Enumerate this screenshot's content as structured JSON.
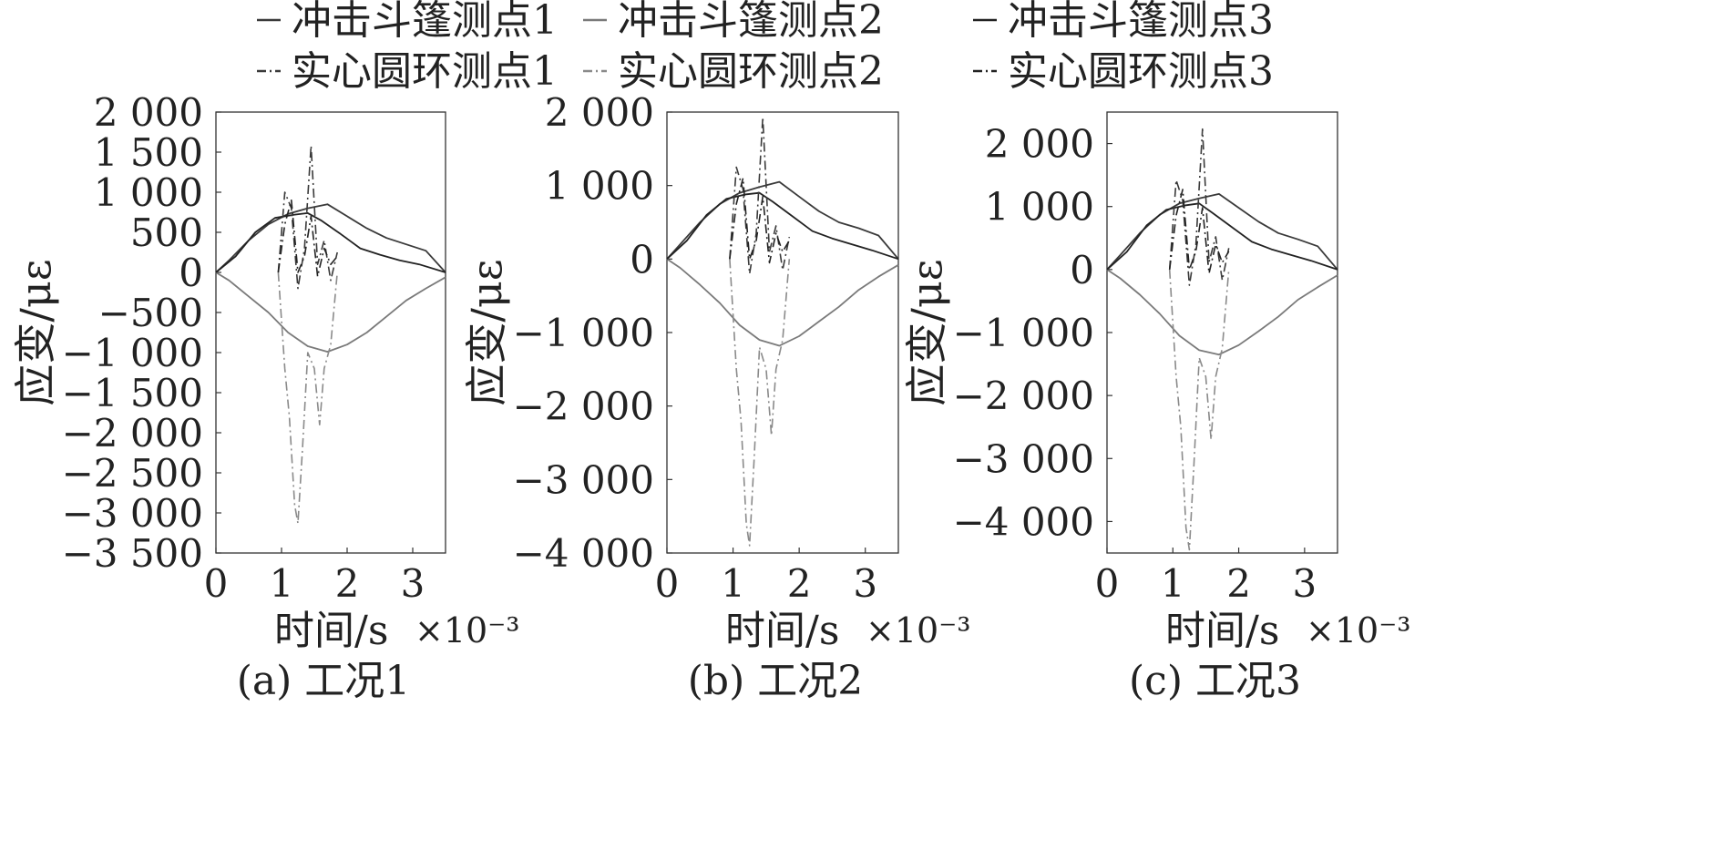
{
  "legend": {
    "entries": [
      {
        "label": "冲击斗篷测点1",
        "style": "solid",
        "color": "#3a3a3a"
      },
      {
        "label": "冲击斗篷测点2",
        "style": "solid",
        "color": "#7a7a7a"
      },
      {
        "label": "冲击斗篷测点3",
        "style": "solid",
        "color": "#222222"
      },
      {
        "label": "实心圆环测点1",
        "style": "dashdot",
        "color": "#3a3a3a"
      },
      {
        "label": "实心圆环测点2",
        "style": "dashdot",
        "color": "#8a8a8a"
      },
      {
        "label": "实心圆环测点3",
        "style": "dashdot",
        "color": "#222222"
      }
    ]
  },
  "chart_data": [
    {
      "type": "line",
      "caption": "(a) 工况1",
      "xlabel": "时间/s",
      "xexp": "×10⁻³",
      "ylabel": "应变/με",
      "xlim": [
        0,
        3.5
      ],
      "ylim": [
        -3500,
        2000
      ],
      "xticks": [
        0,
        1,
        2,
        3
      ],
      "xtick_labels": [
        "0",
        "1",
        "2",
        "3"
      ],
      "yticks": [
        2000,
        1500,
        1000,
        500,
        0,
        -500,
        -1000,
        -1500,
        -2000,
        -2500,
        -3000,
        -3500
      ],
      "ytick_labels": [
        "2 000",
        "1 500",
        "1 000",
        "500",
        "0",
        "−500",
        "−1 000",
        "−1 500",
        "−2 000",
        "−2 500",
        "−3 000",
        "−3 500"
      ],
      "series": [
        {
          "name": "冲击斗篷测点1",
          "style": "solid",
          "color": "#3a3a3a",
          "x": [
            0,
            0.2,
            0.5,
            0.8,
            1.1,
            1.4,
            1.7,
            2.0,
            2.3,
            2.6,
            2.9,
            3.2,
            3.5
          ],
          "y": [
            0,
            150,
            400,
            600,
            730,
            800,
            850,
            700,
            550,
            430,
            350,
            270,
            0
          ]
        },
        {
          "name": "冲击斗篷测点2",
          "style": "solid",
          "color": "#7a7a7a",
          "x": [
            0,
            0.2,
            0.5,
            0.8,
            1.1,
            1.4,
            1.7,
            2.0,
            2.3,
            2.6,
            2.9,
            3.2,
            3.5
          ],
          "y": [
            0,
            -100,
            -300,
            -500,
            -750,
            -920,
            -990,
            -900,
            -750,
            -550,
            -350,
            -200,
            -60
          ]
        },
        {
          "name": "冲击斗篷测点3",
          "style": "solid",
          "color": "#222222",
          "x": [
            0,
            0.3,
            0.6,
            0.9,
            1.2,
            1.4,
            1.6,
            1.9,
            2.2,
            2.5,
            2.8,
            3.1,
            3.5
          ],
          "y": [
            0,
            200,
            500,
            680,
            720,
            740,
            650,
            480,
            300,
            220,
            150,
            100,
            0
          ]
        },
        {
          "name": "实心圆环测点1",
          "style": "dashdot",
          "color": "#3a3a3a",
          "x": [
            0.95,
            1.05,
            1.15,
            1.25,
            1.35,
            1.45,
            1.55,
            1.65,
            1.75,
            1.85
          ],
          "y": [
            0,
            1000,
            800,
            -200,
            300,
            1580,
            100,
            400,
            -100,
            250
          ]
        },
        {
          "name": "实心圆环测点2",
          "style": "dashdot",
          "color": "#8a8a8a",
          "x": [
            0.95,
            1.05,
            1.12,
            1.2,
            1.25,
            1.32,
            1.4,
            1.5,
            1.58,
            1.65,
            1.75,
            1.85
          ],
          "y": [
            0,
            -1200,
            -1800,
            -2900,
            -3130,
            -2200,
            -1000,
            -1200,
            -1900,
            -1200,
            -900,
            0
          ]
        },
        {
          "name": "实心圆环测点3",
          "style": "dashdot",
          "color": "#222222",
          "x": [
            0.95,
            1.05,
            1.15,
            1.25,
            1.35,
            1.45,
            1.55,
            1.65,
            1.75,
            1.85
          ],
          "y": [
            0,
            600,
            900,
            0,
            200,
            700,
            -50,
            300,
            100,
            200
          ]
        }
      ]
    },
    {
      "type": "line",
      "caption": "(b) 工况2",
      "xlabel": "时间/s",
      "xexp": "×10⁻³",
      "ylabel": "应变/με",
      "xlim": [
        0,
        3.5
      ],
      "ylim": [
        -4000,
        2000
      ],
      "xticks": [
        0,
        1,
        2,
        3
      ],
      "xtick_labels": [
        "0",
        "1",
        "2",
        "3"
      ],
      "yticks": [
        2000,
        1000,
        0,
        -1000,
        -2000,
        -3000,
        -4000
      ],
      "ytick_labels": [
        "2 000",
        "1 000",
        "0",
        "−1 000",
        "−2 000",
        "−3 000",
        "−4 000"
      ],
      "series": [
        {
          "name": "冲击斗篷测点1",
          "style": "solid",
          "color": "#3a3a3a",
          "x": [
            0,
            0.2,
            0.5,
            0.8,
            1.1,
            1.4,
            1.7,
            2.0,
            2.3,
            2.6,
            2.9,
            3.2,
            3.5
          ],
          "y": [
            0,
            200,
            500,
            750,
            900,
            980,
            1050,
            850,
            650,
            500,
            420,
            320,
            0
          ]
        },
        {
          "name": "冲击斗篷测点2",
          "style": "solid",
          "color": "#7a7a7a",
          "x": [
            0,
            0.2,
            0.5,
            0.8,
            1.1,
            1.4,
            1.7,
            2.0,
            2.3,
            2.6,
            2.9,
            3.2,
            3.5
          ],
          "y": [
            0,
            -120,
            -350,
            -600,
            -900,
            -1100,
            -1180,
            -1050,
            -850,
            -650,
            -420,
            -240,
            -80
          ]
        },
        {
          "name": "冲击斗篷测点3",
          "style": "solid",
          "color": "#222222",
          "x": [
            0,
            0.3,
            0.6,
            0.9,
            1.2,
            1.4,
            1.6,
            1.9,
            2.2,
            2.5,
            2.8,
            3.1,
            3.5
          ],
          "y": [
            0,
            250,
            600,
            820,
            880,
            900,
            780,
            580,
            380,
            280,
            200,
            120,
            0
          ]
        },
        {
          "name": "实心圆环测点1",
          "style": "dashdot",
          "color": "#3a3a3a",
          "x": [
            0.95,
            1.05,
            1.15,
            1.25,
            1.35,
            1.45,
            1.55,
            1.65,
            1.75,
            1.85
          ],
          "y": [
            0,
            1250,
            950,
            -200,
            350,
            1930,
            100,
            450,
            -150,
            300
          ]
        },
        {
          "name": "实心圆环测点2",
          "style": "dashdot",
          "color": "#8a8a8a",
          "x": [
            0.95,
            1.05,
            1.12,
            1.2,
            1.25,
            1.32,
            1.4,
            1.5,
            1.58,
            1.65,
            1.75,
            1.85
          ],
          "y": [
            0,
            -1500,
            -2200,
            -3600,
            -3900,
            -2700,
            -1200,
            -1500,
            -2400,
            -1500,
            -1100,
            0
          ]
        },
        {
          "name": "实心圆环测点3",
          "style": "dashdot",
          "color": "#222222",
          "x": [
            0.95,
            1.05,
            1.15,
            1.25,
            1.35,
            1.45,
            1.55,
            1.65,
            1.75,
            1.85
          ],
          "y": [
            0,
            750,
            1100,
            0,
            250,
            850,
            -50,
            350,
            100,
            250
          ]
        }
      ]
    },
    {
      "type": "line",
      "caption": "(c) 工况3",
      "xlabel": "时间/s",
      "xexp": "×10⁻³",
      "ylabel": "应变/με",
      "xlim": [
        0,
        3.5
      ],
      "ylim": [
        -4500,
        2500
      ],
      "xticks": [
        0,
        1,
        2,
        3
      ],
      "xtick_labels": [
        "0",
        "1",
        "2",
        "3"
      ],
      "yticks": [
        2000,
        1000,
        0,
        -1000,
        -2000,
        -3000,
        -4000
      ],
      "ytick_labels": [
        "2 000",
        "1 000",
        "0",
        "−1 000",
        "−2 000",
        "−3 000",
        "−4 000"
      ],
      "series": [
        {
          "name": "冲击斗篷测点1",
          "style": "solid",
          "color": "#3a3a3a",
          "x": [
            0,
            0.2,
            0.5,
            0.8,
            1.1,
            1.4,
            1.7,
            2.0,
            2.3,
            2.6,
            2.9,
            3.2,
            3.5
          ],
          "y": [
            0,
            230,
            580,
            870,
            1050,
            1130,
            1200,
            980,
            760,
            580,
            480,
            370,
            0
          ]
        },
        {
          "name": "冲击斗篷测点2",
          "style": "solid",
          "color": "#7a7a7a",
          "x": [
            0,
            0.2,
            0.5,
            0.8,
            1.1,
            1.4,
            1.7,
            2.0,
            2.3,
            2.6,
            2.9,
            3.2,
            3.5
          ],
          "y": [
            0,
            -140,
            -400,
            -700,
            -1050,
            -1280,
            -1350,
            -1200,
            -980,
            -750,
            -480,
            -280,
            -90
          ]
        },
        {
          "name": "冲击斗篷测点3",
          "style": "solid",
          "color": "#222222",
          "x": [
            0,
            0.3,
            0.6,
            0.9,
            1.2,
            1.4,
            1.6,
            1.9,
            2.2,
            2.5,
            2.8,
            3.1,
            3.5
          ],
          "y": [
            0,
            280,
            700,
            950,
            1020,
            1050,
            900,
            670,
            440,
            320,
            230,
            140,
            0
          ]
        },
        {
          "name": "实心圆环测点1",
          "style": "dashdot",
          "color": "#3a3a3a",
          "x": [
            0.95,
            1.05,
            1.15,
            1.25,
            1.35,
            1.45,
            1.55,
            1.65,
            1.75,
            1.85
          ],
          "y": [
            0,
            1420,
            1100,
            -250,
            400,
            2230,
            120,
            520,
            -170,
            340
          ]
        },
        {
          "name": "实心圆环测点2",
          "style": "dashdot",
          "color": "#8a8a8a",
          "x": [
            0.95,
            1.05,
            1.12,
            1.2,
            1.25,
            1.32,
            1.4,
            1.5,
            1.58,
            1.65,
            1.75,
            1.85
          ],
          "y": [
            0,
            -1700,
            -2500,
            -4100,
            -4450,
            -3100,
            -1400,
            -1700,
            -2700,
            -1700,
            -1250,
            0
          ]
        },
        {
          "name": "实心圆环测点3",
          "style": "dashdot",
          "color": "#222222",
          "x": [
            0.95,
            1.05,
            1.15,
            1.25,
            1.35,
            1.45,
            1.55,
            1.65,
            1.75,
            1.85
          ],
          "y": [
            0,
            860,
            1270,
            0,
            290,
            980,
            -60,
            400,
            110,
            290
          ]
        }
      ]
    }
  ]
}
